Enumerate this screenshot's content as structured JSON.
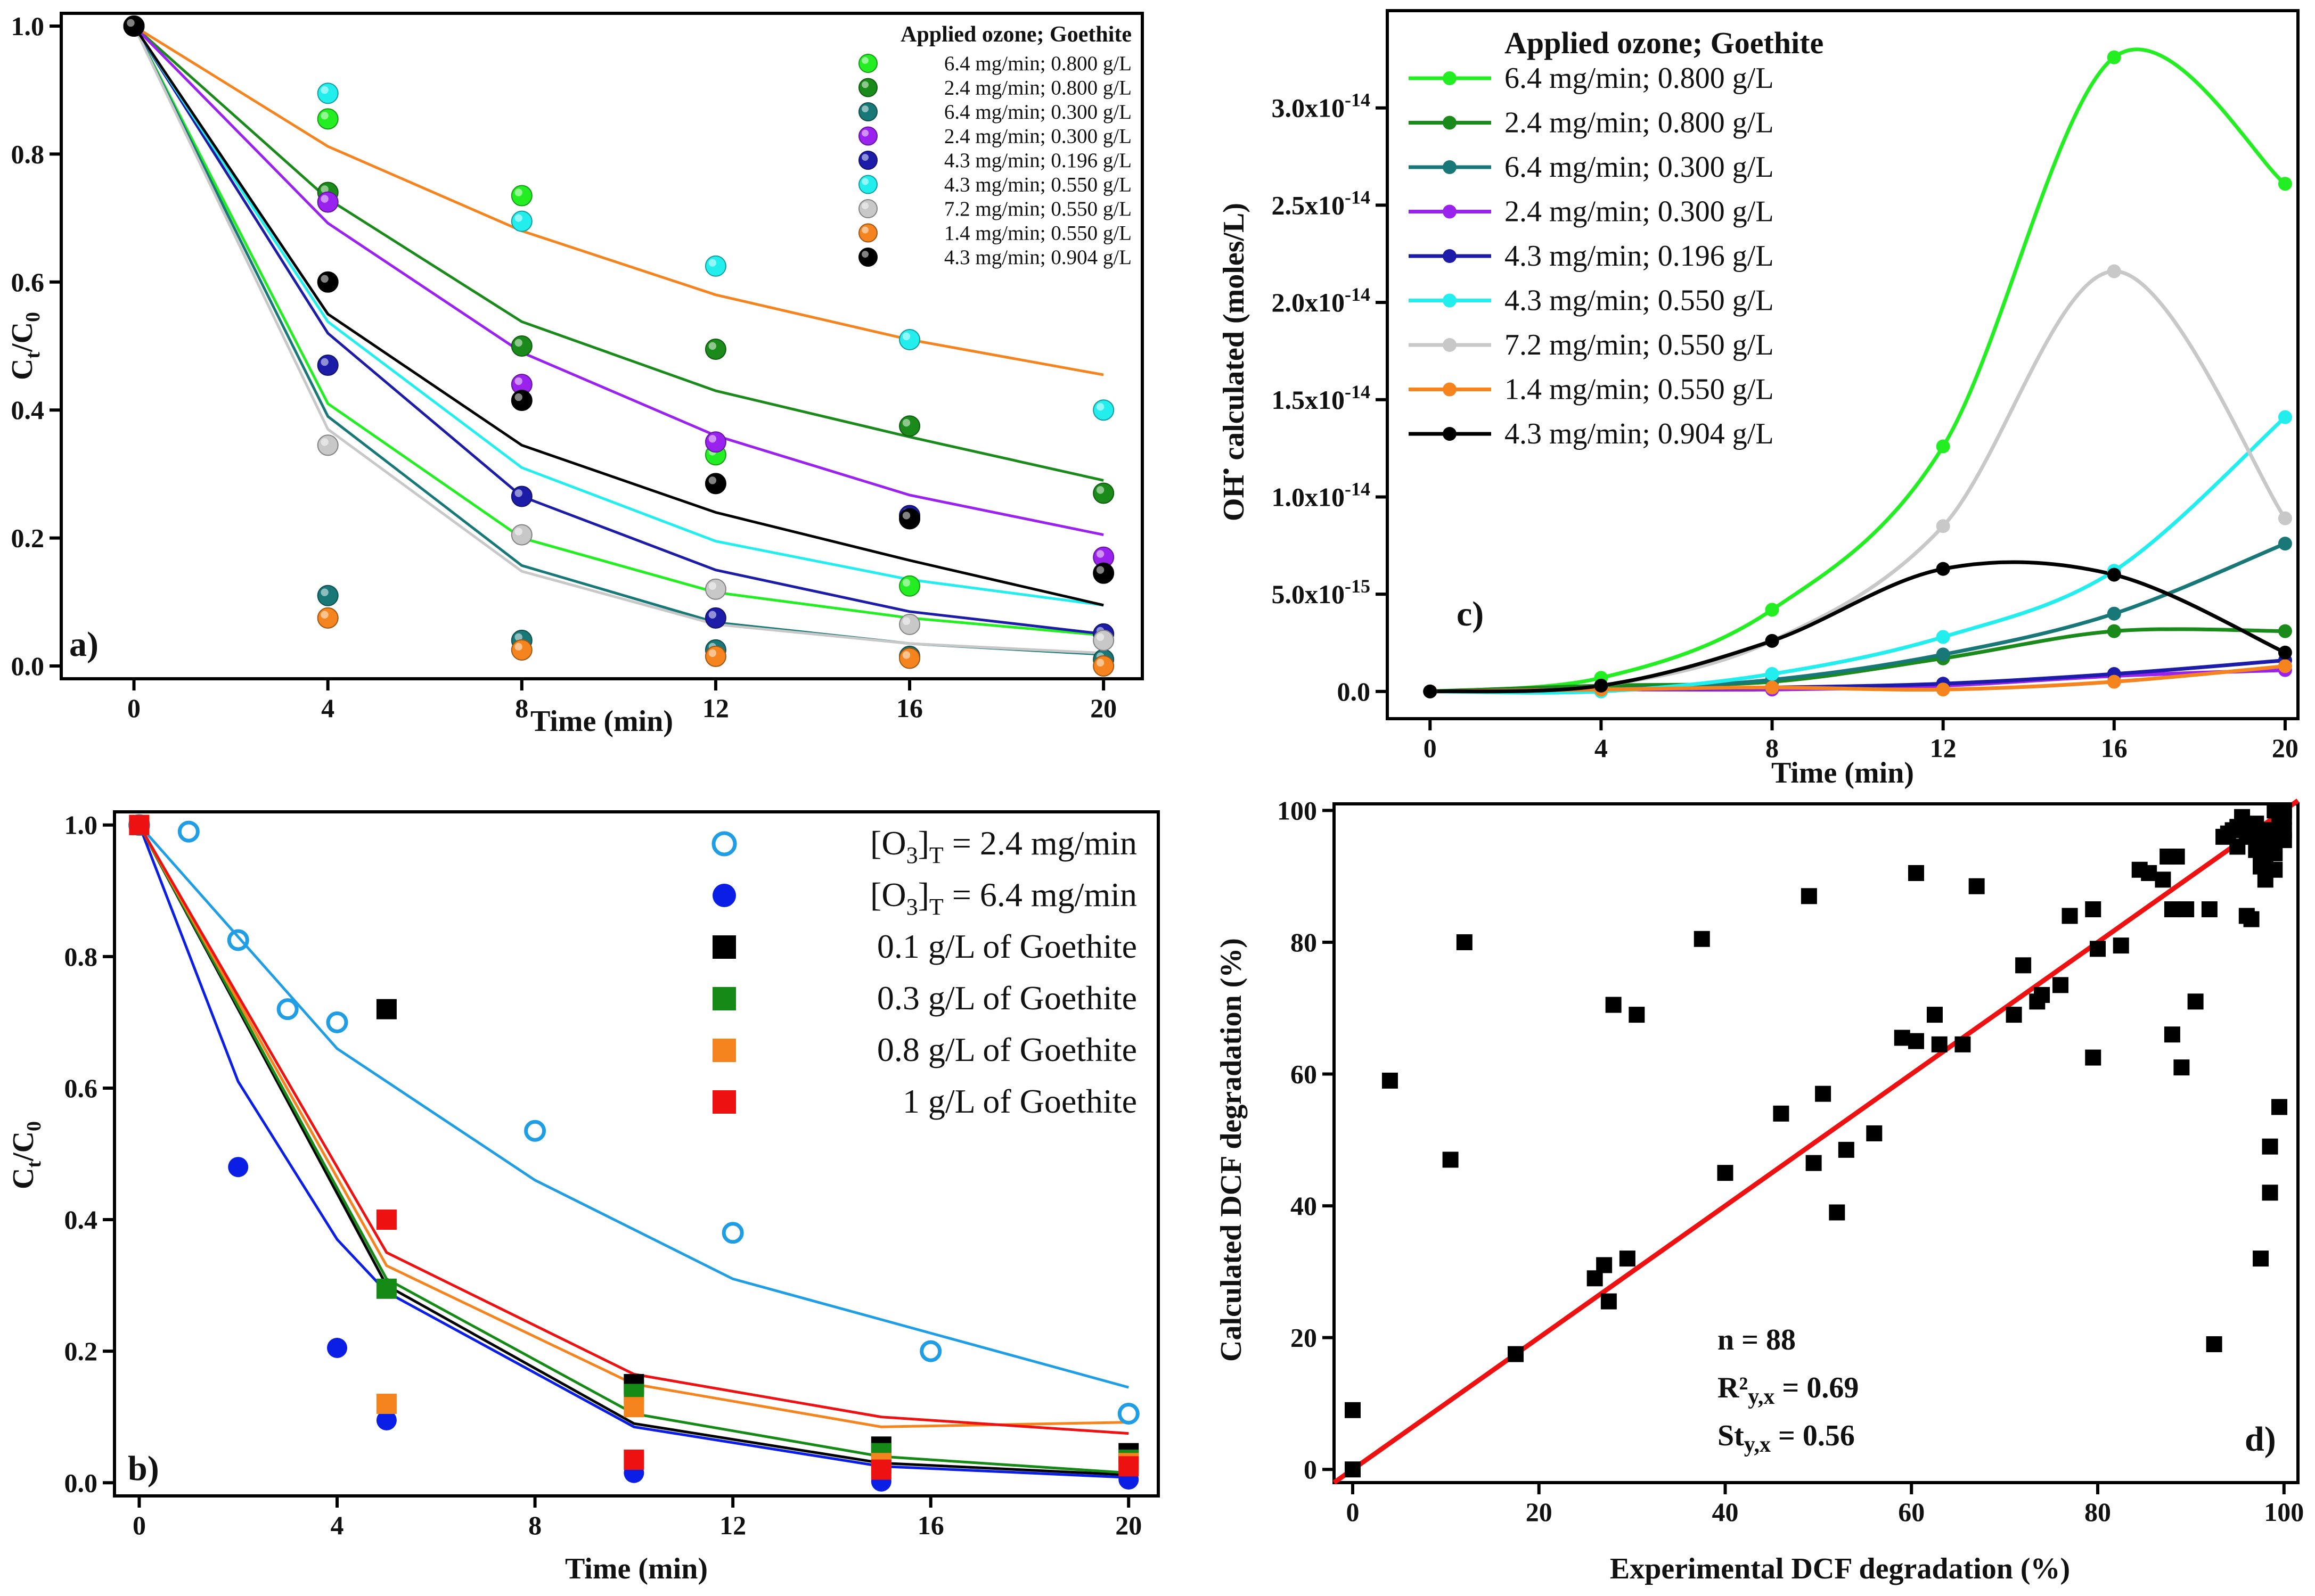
{
  "chart_data": [
    {
      "panel": "a)",
      "type": "scatter",
      "xlabel": "Time (min)",
      "ylabel": "Ct/C0",
      "xlim": [
        -1.5,
        20.8
      ],
      "ylim": [
        -0.02,
        1.02
      ],
      "xticks": [
        0,
        4,
        8,
        12,
        16,
        20
      ],
      "yticks": [
        0.0,
        0.2,
        0.4,
        0.6,
        0.8,
        1.0
      ],
      "legend_title": "Applied ozone; Goethite",
      "legend_position": "top-right",
      "series": [
        {
          "name": "6.4 mg/min; 0.800 g/L",
          "color": "#22ee22",
          "x": [
            0,
            4,
            8,
            12,
            16,
            20
          ],
          "points": [
            1.0,
            0.855,
            0.735,
            0.33,
            0.125,
            0.05
          ],
          "fit": [
            1.0,
            0.41,
            0.2,
            0.115,
            0.075,
            0.048
          ]
        },
        {
          "name": "2.4 mg/min; 0.800 g/L",
          "color": "#1a8a1a",
          "x": [
            0,
            4,
            8,
            12,
            16,
            20
          ],
          "points": [
            1.0,
            0.74,
            0.5,
            0.495,
            0.375,
            0.27
          ],
          "fit": [
            1.0,
            0.73,
            0.538,
            0.43,
            0.358,
            0.29
          ]
        },
        {
          "name": "6.4 mg/min; 0.300 g/L",
          "color": "#187878",
          "x": [
            0,
            4,
            8,
            12,
            16,
            20
          ],
          "points": [
            1.0,
            0.11,
            0.04,
            0.025,
            0.015,
            0.01
          ],
          "fit": [
            1.0,
            0.39,
            0.157,
            0.068,
            0.035,
            0.018
          ]
        },
        {
          "name": "2.4 mg/min; 0.300 g/L",
          "color": "#9a22ee",
          "x": [
            0,
            4,
            8,
            12,
            16,
            20
          ],
          "points": [
            1.0,
            0.725,
            0.44,
            0.35,
            0.235,
            0.17
          ],
          "fit": [
            1.0,
            0.692,
            0.49,
            0.36,
            0.267,
            0.205
          ]
        },
        {
          "name": "4.3 mg/min; 0.196 g/L",
          "color": "#1c1ca8",
          "x": [
            0,
            4,
            8,
            12,
            16,
            20
          ],
          "points": [
            1.0,
            0.47,
            0.265,
            0.075,
            0.235,
            0.05
          ],
          "fit": [
            1.0,
            0.52,
            0.265,
            0.15,
            0.085,
            0.05
          ]
        },
        {
          "name": "4.3 mg/min; 0.550 g/L",
          "color": "#22eeee",
          "x": [
            0,
            4,
            8,
            12,
            16,
            20
          ],
          "points": [
            1.0,
            0.895,
            0.695,
            0.625,
            0.51,
            0.4
          ],
          "fit": [
            1.0,
            0.538,
            0.31,
            0.195,
            0.135,
            0.095
          ]
        },
        {
          "name": "7.2 mg/min; 0.550 g/L",
          "color": "#c8c8c8",
          "x": [
            0,
            4,
            8,
            12,
            16,
            20
          ],
          "points": [
            1.0,
            0.345,
            0.205,
            0.12,
            0.065,
            0.04
          ],
          "fit": [
            1.0,
            0.37,
            0.148,
            0.065,
            0.035,
            0.02
          ]
        },
        {
          "name": "1.4 mg/min; 0.550 g/L",
          "color": "#f5841f",
          "x": [
            0,
            4,
            8,
            12,
            16,
            20
          ],
          "points": [
            1.0,
            0.075,
            0.025,
            0.015,
            0.012,
            0.0
          ],
          "fit": [
            1.0,
            0.812,
            0.68,
            0.58,
            0.51,
            0.455
          ]
        },
        {
          "name": "4.3 mg/min; 0.904 g/L",
          "color": "#000000",
          "x": [
            0,
            4,
            8,
            12,
            16,
            20
          ],
          "points": [
            1.0,
            0.6,
            0.415,
            0.285,
            0.23,
            0.145
          ],
          "fit": [
            1.0,
            0.55,
            0.345,
            0.24,
            0.165,
            0.095
          ]
        }
      ]
    },
    {
      "panel": "b)",
      "type": "scatter",
      "xlabel": "Time (min)",
      "ylabel": "Ct/C0",
      "xlim": [
        -0.5,
        20.6
      ],
      "ylim": [
        -0.02,
        1.02
      ],
      "xticks": [
        0,
        4,
        8,
        12,
        16,
        20
      ],
      "yticks": [
        0.0,
        0.2,
        0.4,
        0.6,
        0.8,
        1.0
      ],
      "legend_position": "top-right",
      "series": [
        {
          "name": "[O3]T = 2.4 mg/min",
          "label_main": "[O",
          "label_sub1": "3",
          "label_mid": "]",
          "label_sub2": "T",
          "label_tail": " = 2.4 mg/min",
          "marker": "open-circle",
          "color": "#1f9ee6",
          "x": [
            0,
            1,
            2,
            3,
            4,
            8,
            12,
            16,
            20
          ],
          "points": [
            1.0,
            0.99,
            0.825,
            0.72,
            0.7,
            0.535,
            0.38,
            0.2,
            0.105
          ],
          "fit_x": [
            0,
            2,
            4,
            8,
            12,
            20
          ],
          "fit": [
            1.0,
            0.83,
            0.66,
            0.46,
            0.31,
            0.145
          ]
        },
        {
          "name": "[O3]T = 6.4 mg/min",
          "label_main": "[O",
          "label_sub1": "3",
          "label_mid": "]",
          "label_sub2": "T",
          "label_tail": " = 6.4 mg/min",
          "marker": "filled-circle",
          "color": "#0a1ee6",
          "x": [
            2,
            4,
            5,
            10,
            15,
            20
          ],
          "points": [
            0.48,
            0.205,
            0.095,
            0.015,
            0.002,
            0.005
          ],
          "fit_x": [
            0,
            2,
            4,
            5,
            10,
            15,
            20
          ],
          "fit": [
            1.0,
            0.61,
            0.37,
            0.29,
            0.085,
            0.025,
            0.008
          ]
        },
        {
          "name": "0.1 g/L of Goethite",
          "marker": "square",
          "color": "#000000",
          "x": [
            0,
            5,
            10,
            15,
            20
          ],
          "points": [
            1.0,
            0.72,
            0.15,
            0.055,
            0.045
          ],
          "fit_x": [
            0,
            5,
            10,
            15,
            20
          ],
          "fit": [
            1.0,
            0.3,
            0.09,
            0.03,
            0.012
          ]
        },
        {
          "name": "0.3 g/L of Goethite",
          "marker": "square",
          "color": "#168a16",
          "x": [
            0,
            5,
            10,
            15,
            20
          ],
          "points": [
            1.0,
            0.295,
            0.135,
            0.045,
            0.035
          ],
          "fit_x": [
            0,
            5,
            10,
            15,
            20
          ],
          "fit": [
            1.0,
            0.31,
            0.105,
            0.04,
            0.015
          ]
        },
        {
          "name": "0.8 g/L of Goethite",
          "marker": "square",
          "color": "#f5841f",
          "x": [
            0,
            5,
            10,
            15,
            20
          ],
          "points": [
            1.0,
            0.12,
            0.115,
            0.03,
            0.03
          ],
          "fit_x": [
            0,
            5,
            10,
            15,
            20
          ],
          "fit": [
            1.0,
            0.33,
            0.15,
            0.085,
            0.092
          ]
        },
        {
          "name": "1 g/L of Goethite",
          "marker": "square",
          "color": "#ee1111",
          "x": [
            0,
            5,
            10,
            15,
            20
          ],
          "points": [
            1.0,
            0.4,
            0.035,
            0.02,
            0.025
          ],
          "fit_x": [
            0,
            5,
            10,
            15,
            20
          ],
          "fit": [
            1.0,
            0.35,
            0.165,
            0.1,
            0.075
          ]
        }
      ]
    },
    {
      "panel": "c)",
      "type": "line",
      "xlabel": "Time (min)",
      "ylabel": "OH• calculated (moles/L)",
      "ylabel_main": "OH",
      "ylabel_sup": "•",
      "ylabel_tail": " calculated (moles/L)",
      "xlim": [
        -1,
        20.3
      ],
      "ylim": [
        -1.4e-15,
        3.5e-14
      ],
      "xticks": [
        0,
        4,
        8,
        12,
        16,
        20
      ],
      "yticks": [
        {
          "value": 0,
          "label": "0.0",
          "mant": "",
          "exp": ""
        },
        {
          "value": 5e-15,
          "label": "5.0x10^-15",
          "mant": "5.0x10",
          "exp": "-15"
        },
        {
          "value": 1e-14,
          "label": "1.0x10^-14",
          "mant": "1.0x10",
          "exp": "-14"
        },
        {
          "value": 1.5e-14,
          "label": "1.5x10^-14",
          "mant": "1.5x10",
          "exp": "-14"
        },
        {
          "value": 2e-14,
          "label": "2.0x10^-14",
          "mant": "2.0x10",
          "exp": "-14"
        },
        {
          "value": 2.5e-14,
          "label": "2.5x10^-14",
          "mant": "2.5x10",
          "exp": "-14"
        },
        {
          "value": 3e-14,
          "label": "3.0x10^-14",
          "mant": "3.0x10",
          "exp": "-14"
        }
      ],
      "legend_title": "Applied ozone; Goethite",
      "legend_position": "top-left",
      "series": [
        {
          "name": "6.4 mg/min; 0.800 g/L",
          "color": "#22ee22",
          "x": [
            0,
            4,
            8,
            12,
            16,
            20
          ],
          "values": [
            0,
            7e-16,
            4.2e-15,
            1.26e-14,
            3.26e-14,
            2.61e-14
          ]
        },
        {
          "name": "2.4 mg/min; 0.800 g/L",
          "color": "#1a8a1a",
          "x": [
            0,
            4,
            8,
            12,
            16,
            20
          ],
          "values": [
            0,
            3e-16,
            5e-16,
            1.7e-15,
            3.1e-15,
            3.1e-15
          ]
        },
        {
          "name": "6.4 mg/min; 0.300 g/L",
          "color": "#187878",
          "x": [
            0,
            4,
            8,
            12,
            16,
            20
          ],
          "values": [
            0,
            1e-16,
            6e-16,
            1.9e-15,
            4e-15,
            7.6e-15
          ]
        },
        {
          "name": "2.4 mg/min; 0.300 g/L",
          "color": "#9a22ee",
          "x": [
            0,
            4,
            8,
            12,
            16,
            20
          ],
          "values": [
            0,
            1e-16,
            1e-16,
            3e-16,
            8e-16,
            1.1e-15
          ]
        },
        {
          "name": "4.3 mg/min; 0.196 g/L",
          "color": "#1c1ca8",
          "x": [
            0,
            4,
            8,
            12,
            16,
            20
          ],
          "values": [
            0,
            1e-16,
            2e-16,
            4e-16,
            9e-16,
            1.6e-15
          ]
        },
        {
          "name": "4.3 mg/min; 0.550 g/L",
          "color": "#22eeee",
          "x": [
            0,
            4,
            8,
            12,
            16,
            20
          ],
          "values": [
            0,
            0,
            9e-16,
            2.8e-15,
            6.2e-15,
            1.41e-14
          ]
        },
        {
          "name": "7.2 mg/min; 0.550 g/L",
          "color": "#c8c8c8",
          "x": [
            0,
            4,
            8,
            12,
            16,
            20
          ],
          "values": [
            0,
            3e-16,
            2.6e-15,
            8.5e-15,
            2.16e-14,
            8.9e-15
          ]
        },
        {
          "name": "1.4 mg/min; 0.550 g/L",
          "color": "#f5841f",
          "x": [
            0,
            4,
            8,
            12,
            16,
            20
          ],
          "values": [
            0,
            1e-16,
            2e-16,
            1e-16,
            5e-16,
            1.3e-15
          ]
        },
        {
          "name": "4.3 mg/min; 0.904 g/L",
          "color": "#000000",
          "x": [
            0,
            4,
            8,
            12,
            16,
            20
          ],
          "values": [
            0,
            3e-16,
            2.6e-15,
            6.3e-15,
            6e-15,
            2e-15
          ]
        }
      ]
    },
    {
      "panel": "d)",
      "type": "scatter",
      "xlabel": "Experimental DCF degradation (%)",
      "ylabel": "Calculated DCF degradation (%)",
      "xlim": [
        -2,
        101.5
      ],
      "ylim": [
        -2,
        101
      ],
      "xticks": [
        0,
        20,
        40,
        60,
        80,
        100
      ],
      "yticks": [
        0,
        20,
        40,
        60,
        80,
        100
      ],
      "fit_line": {
        "x": [
          -2,
          101.5
        ],
        "y": [
          -2,
          101.5
        ],
        "color": "#ee1111"
      },
      "stats": [
        {
          "text": "n = 88"
        },
        {
          "main": "R²",
          "sub": "y,x",
          "tail": " = 0.69"
        },
        {
          "main": "St",
          "sub": "y,x",
          "tail": " = 0.56"
        }
      ],
      "points": [
        [
          0,
          0
        ],
        [
          0,
          9
        ],
        [
          4,
          59
        ],
        [
          10.5,
          47
        ],
        [
          12,
          80
        ],
        [
          17.5,
          17.5
        ],
        [
          26,
          29
        ],
        [
          27,
          31
        ],
        [
          27.5,
          25.5
        ],
        [
          28,
          70.5
        ],
        [
          29.5,
          32
        ],
        [
          30.5,
          69
        ],
        [
          37.5,
          80.5
        ],
        [
          40,
          45
        ],
        [
          46,
          54
        ],
        [
          49,
          87
        ],
        [
          49.5,
          46.5
        ],
        [
          50.5,
          57
        ],
        [
          52,
          39
        ],
        [
          53,
          48.5
        ],
        [
          56,
          51
        ],
        [
          59,
          65.5
        ],
        [
          60.5,
          65
        ],
        [
          60.5,
          90.5
        ],
        [
          62.5,
          69
        ],
        [
          63,
          64.5
        ],
        [
          65.5,
          64.5
        ],
        [
          67,
          88.5
        ],
        [
          71,
          69
        ],
        [
          72,
          76.5
        ],
        [
          73.5,
          71
        ],
        [
          74,
          72
        ],
        [
          76,
          73.5
        ],
        [
          77,
          84
        ],
        [
          79.5,
          85
        ],
        [
          79.5,
          62.5
        ],
        [
          80,
          79
        ],
        [
          82.5,
          79.5
        ],
        [
          84.5,
          91
        ],
        [
          85.5,
          90.5
        ],
        [
          87,
          89.5
        ],
        [
          87.5,
          93
        ],
        [
          88,
          66
        ],
        [
          88,
          85
        ],
        [
          88.5,
          93
        ],
        [
          89,
          61
        ],
        [
          89.5,
          85
        ],
        [
          90.5,
          71
        ],
        [
          92,
          85
        ],
        [
          92.5,
          19
        ],
        [
          93.5,
          96
        ],
        [
          94,
          96.5
        ],
        [
          94.5,
          97
        ],
        [
          95,
          97.5
        ],
        [
          95,
          94.5
        ],
        [
          95.5,
          98
        ],
        [
          95.5,
          99
        ],
        [
          96,
          84
        ],
        [
          96,
          96
        ],
        [
          96.5,
          97.5
        ],
        [
          96.5,
          83.5
        ],
        [
          97,
          98
        ],
        [
          97,
          94
        ],
        [
          97.5,
          91.5
        ],
        [
          97.5,
          93
        ],
        [
          97.5,
          32
        ],
        [
          97.5,
          96
        ],
        [
          97.5,
          91.5
        ],
        [
          98,
          95
        ],
        [
          98,
          97
        ],
        [
          98,
          89.5
        ],
        [
          98,
          92
        ],
        [
          98.5,
          42
        ],
        [
          98.5,
          49
        ],
        [
          98.5,
          95
        ],
        [
          98.5,
          97
        ],
        [
          99,
          91
        ],
        [
          99,
          93.5
        ],
        [
          99,
          96
        ],
        [
          99.5,
          98
        ],
        [
          99.5,
          98.5
        ],
        [
          99.5,
          55
        ],
        [
          99.5,
          97.5
        ],
        [
          100,
          99
        ],
        [
          100,
          97
        ],
        [
          100,
          100
        ],
        [
          100,
          95.5
        ],
        [
          99,
          100
        ]
      ]
    }
  ]
}
